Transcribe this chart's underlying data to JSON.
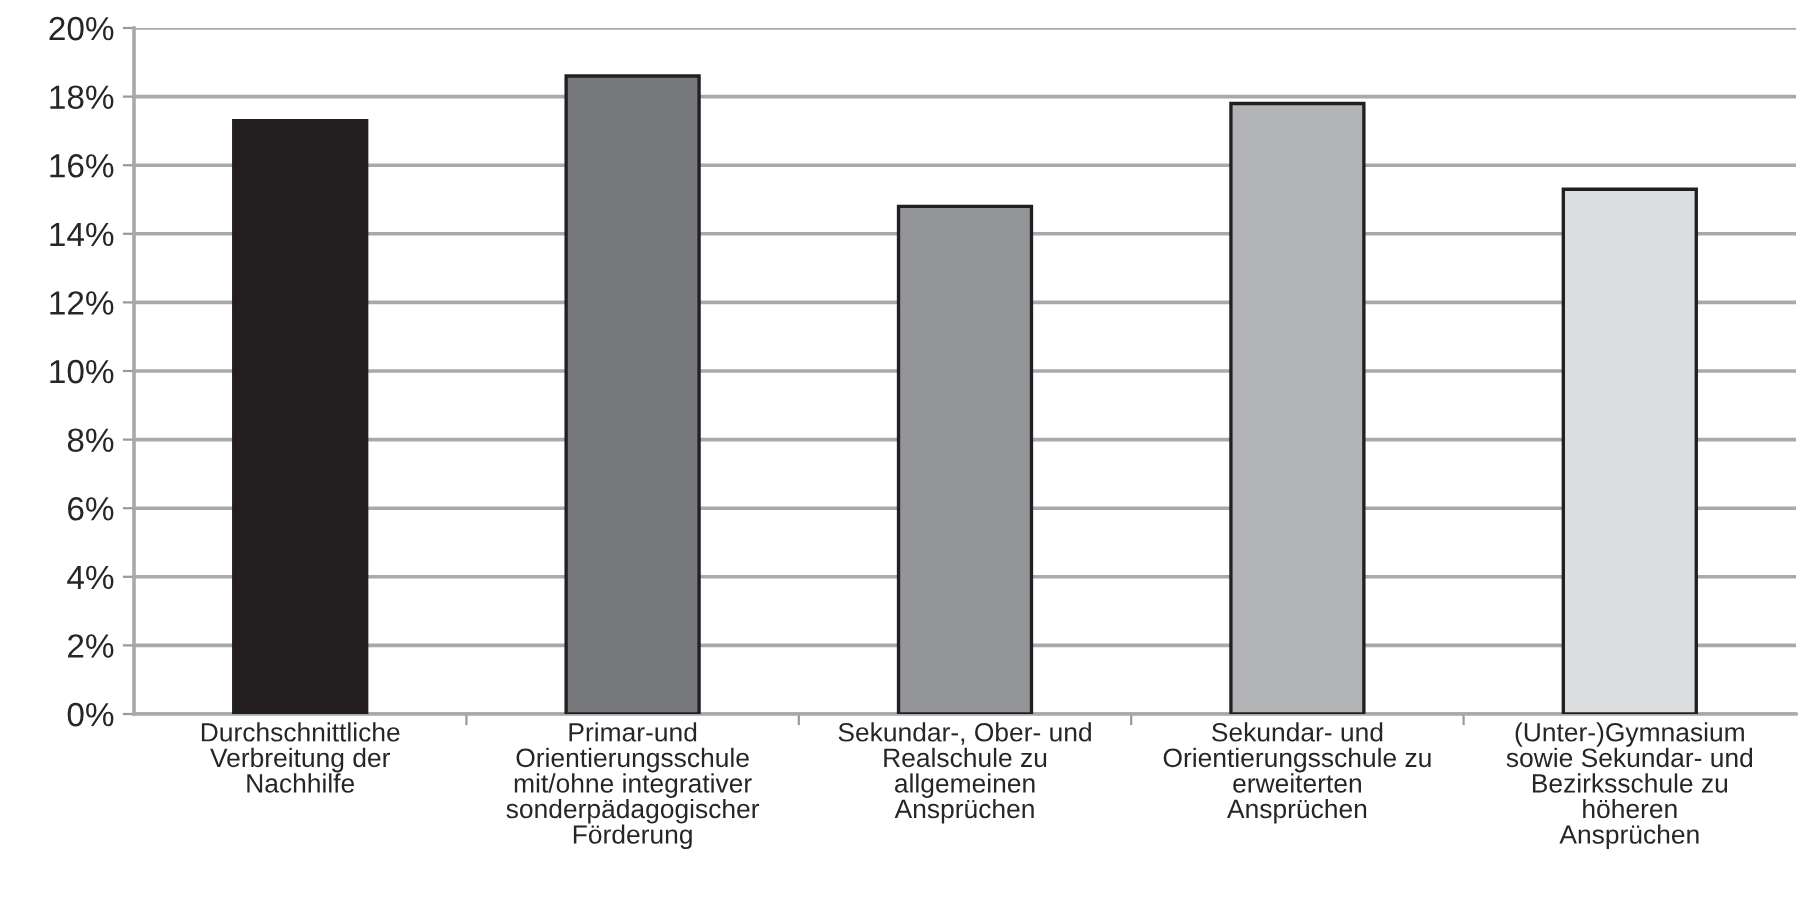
{
  "chart_data": {
    "type": "bar",
    "categories": [
      "Durchschnittliche\nVerbreitung der\nNachhilfe",
      "Primar-und\nOrientierungsschule\nmit/ohne integrativer\nsonderpädagogischer\nFörderung",
      "Sekundar-, Ober- und\nRealschule zu\nallgemeinen\nAnsprüchen",
      "Sekundar- und\nOrientierungsschule zu\nerweiterten\nAnsprüchen",
      "(Unter-)Gymnasium\nsowie Sekundar- und\nBezirksschule zu\nhöheren\nAnsprüchen"
    ],
    "values": [
      17.3,
      18.6,
      14.8,
      17.8,
      15.3
    ],
    "colors": [
      "#231f20",
      "#77787b",
      "#939598",
      "#b3b4b6",
      "#dcddde"
    ],
    "ylim": [
      0,
      20
    ],
    "yticks": [
      {
        "value": 0,
        "label": "0%"
      },
      {
        "value": 2,
        "label": "2%"
      },
      {
        "value": 4,
        "label": "4%"
      },
      {
        "value": 6,
        "label": "6%"
      },
      {
        "value": 8,
        "label": "8%"
      },
      {
        "value": 10,
        "label": "10%"
      },
      {
        "value": 12,
        "label": "12%"
      },
      {
        "value": 14,
        "label": "14%"
      },
      {
        "value": 16,
        "label": "16%"
      },
      {
        "value": 18,
        "label": "18%"
      },
      {
        "value": 20,
        "label": "20%"
      }
    ],
    "grid": "y",
    "legend": false
  }
}
